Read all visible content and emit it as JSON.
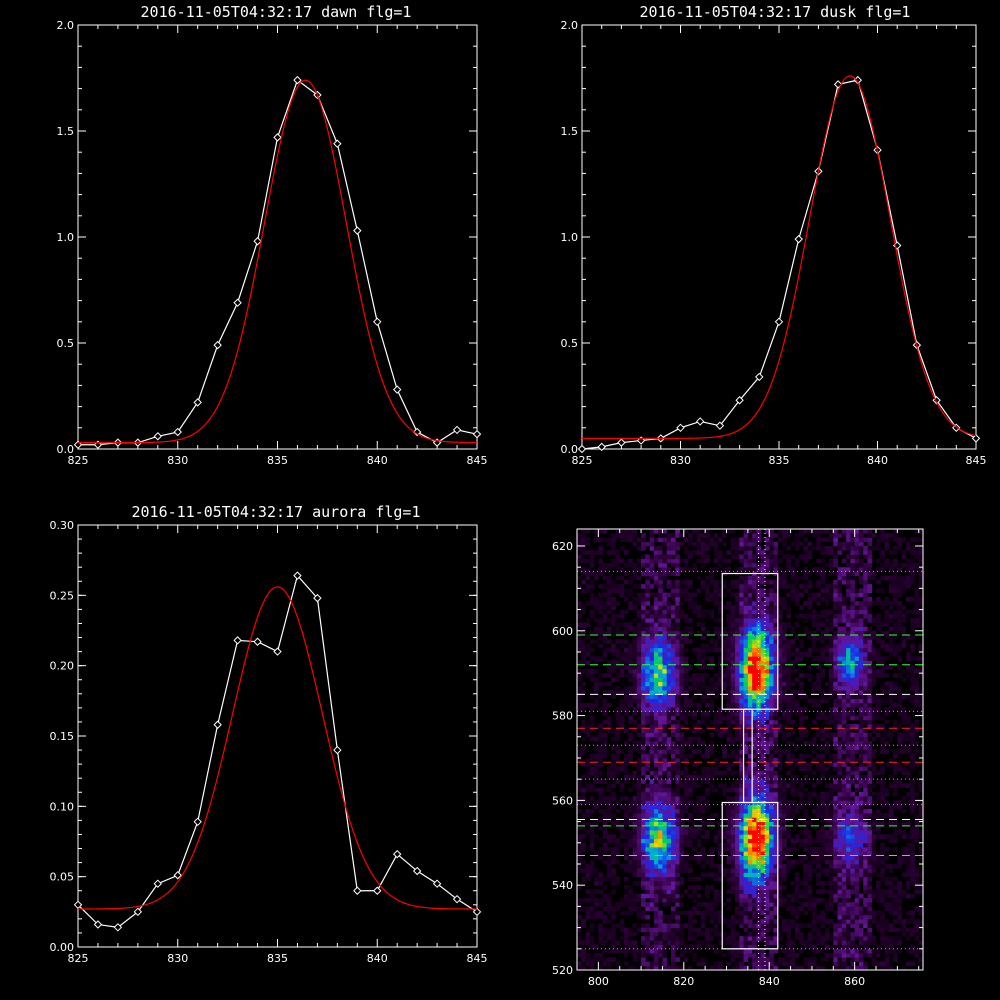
{
  "chart_data": [
    {
      "type": "line",
      "title": "2016-11-05T04:32:17 dawn flg=1",
      "xlim": [
        825,
        845
      ],
      "ylim": [
        0,
        2.0
      ],
      "xticks": [
        825,
        830,
        835,
        840,
        845
      ],
      "yticks": [
        0.0,
        0.5,
        1.0,
        1.5,
        2.0
      ],
      "ytick_labels": [
        "0.0",
        "0.5",
        "1.0",
        "1.5",
        "2.0"
      ],
      "series": [
        {
          "color": "#ffffff",
          "marker": "diamond",
          "x": [
            825,
            826,
            827,
            828,
            829,
            830,
            831,
            832,
            833,
            834,
            835,
            836,
            837,
            838,
            839,
            840,
            841,
            842,
            843,
            844,
            845
          ],
          "y": [
            0.02,
            0.02,
            0.03,
            0.03,
            0.06,
            0.08,
            0.22,
            0.49,
            0.69,
            0.98,
            1.47,
            1.74,
            1.67,
            1.44,
            1.03,
            0.6,
            0.28,
            0.08,
            0.03,
            0.09,
            0.07
          ]
        },
        {
          "color": "#ff0000",
          "fit": "gaussian",
          "amplitude": 1.71,
          "center": 836.4,
          "sigma": 2.05,
          "offset": 0.03
        }
      ]
    },
    {
      "type": "line",
      "title": "2016-11-05T04:32:17 dusk flg=1",
      "xlim": [
        825,
        845
      ],
      "ylim": [
        0,
        2.0
      ],
      "xticks": [
        825,
        830,
        835,
        840,
        845
      ],
      "yticks": [
        0.0,
        0.5,
        1.0,
        1.5,
        2.0
      ],
      "ytick_labels": [
        "0.0",
        "0.5",
        "1.0",
        "1.5",
        "2.0"
      ],
      "series": [
        {
          "color": "#ffffff",
          "marker": "diamond",
          "x": [
            825,
            826,
            827,
            828,
            829,
            830,
            831,
            832,
            833,
            834,
            835,
            836,
            837,
            838,
            839,
            840,
            841,
            842,
            843,
            844,
            845
          ],
          "y": [
            0.0,
            0.01,
            0.03,
            0.04,
            0.05,
            0.1,
            0.13,
            0.11,
            0.23,
            0.34,
            0.6,
            0.99,
            1.31,
            1.72,
            1.74,
            1.41,
            0.96,
            0.49,
            0.23,
            0.1,
            0.05
          ]
        },
        {
          "color": "#ff0000",
          "fit": "gaussian",
          "amplitude": 1.71,
          "center": 838.6,
          "sigma": 2.05,
          "offset": 0.05
        }
      ]
    },
    {
      "type": "line",
      "title": "2016-11-05T04:32:17 aurora flg=1",
      "xlim": [
        825,
        845
      ],
      "ylim": [
        0,
        0.3
      ],
      "xticks": [
        825,
        830,
        835,
        840,
        845
      ],
      "yticks": [
        0.0,
        0.05,
        0.1,
        0.15,
        0.2,
        0.25,
        0.3
      ],
      "ytick_labels": [
        "0.00",
        "0.05",
        "0.10",
        "0.15",
        "0.20",
        "0.25",
        "0.30"
      ],
      "series": [
        {
          "color": "#ffffff",
          "marker": "diamond",
          "x": [
            825,
            826,
            827,
            828,
            829,
            830,
            831,
            832,
            833,
            834,
            835,
            836,
            837,
            838,
            839,
            840,
            841,
            842,
            843,
            844,
            845
          ],
          "y": [
            0.03,
            0.016,
            0.014,
            0.025,
            0.045,
            0.051,
            0.089,
            0.158,
            0.218,
            0.217,
            0.21,
            0.264,
            0.248,
            0.14,
            0.04,
            0.04,
            0.066,
            0.054,
            0.045,
            0.034,
            0.025
          ]
        },
        {
          "color": "#ff0000",
          "fit": "gaussian",
          "amplitude": 0.229,
          "center": 835.0,
          "sigma": 2.25,
          "offset": 0.027
        }
      ]
    },
    {
      "type": "heatmap",
      "title": "",
      "colormap": "idl-rainbow",
      "xlim": [
        795,
        876
      ],
      "ylim": [
        520,
        624
      ],
      "xticks": [
        800,
        820,
        840,
        860
      ],
      "yticks": [
        520,
        540,
        560,
        580,
        600,
        620
      ],
      "blobs": [
        {
          "x": 814,
          "y": 590,
          "sx": 2.6,
          "sy": 5.5,
          "intensity": 0.55
        },
        {
          "x": 837,
          "y": 591,
          "sx": 2.6,
          "sy": 6.5,
          "intensity": 1.0
        },
        {
          "x": 859,
          "y": 593,
          "sx": 2.2,
          "sy": 4.0,
          "intensity": 0.45
        },
        {
          "x": 814,
          "y": 551,
          "sx": 2.6,
          "sy": 5.5,
          "intensity": 0.6
        },
        {
          "x": 837,
          "y": 551,
          "sx": 2.6,
          "sy": 6.5,
          "intensity": 1.0
        },
        {
          "x": 859,
          "y": 551,
          "sx": 2.4,
          "sy": 4.5,
          "intensity": 0.3
        }
      ],
      "boxes": [
        {
          "x0": 829,
          "x1": 842,
          "y0": 581.5,
          "y1": 613.5,
          "color": "#ffffff"
        },
        {
          "x0": 829,
          "x1": 842,
          "y0": 525,
          "y1": 559.5,
          "color": "#ffffff"
        },
        {
          "x0": 834,
          "x1": 836,
          "y0": 559.5,
          "y1": 581.5,
          "color": "#ffffff"
        }
      ],
      "vlines": [
        {
          "x": 837.5,
          "style": "dotted",
          "color": "#ffffff"
        },
        {
          "x": 839.0,
          "style": "dotted",
          "color": "#ffffff"
        }
      ],
      "hlines": [
        {
          "y": 614,
          "style": "dotted",
          "color": "#ff66ff"
        },
        {
          "y": 599,
          "style": "dashed",
          "color": "#33ff33"
        },
        {
          "y": 592,
          "style": "dashed",
          "color": "#33ff33"
        },
        {
          "y": 585,
          "style": "dashed",
          "color": "#ffffff"
        },
        {
          "y": 581,
          "style": "dotted",
          "color": "#ff66ff"
        },
        {
          "y": 577,
          "style": "dashed",
          "color": "#ff2222"
        },
        {
          "y": 573,
          "style": "dotted",
          "color": "#ff66ff"
        },
        {
          "y": 569,
          "style": "dashed",
          "color": "#ff2222"
        },
        {
          "y": 565,
          "style": "dotted",
          "color": "#ff66ff"
        },
        {
          "y": 559,
          "style": "dotted",
          "color": "#ff66ff"
        },
        {
          "y": 555.5,
          "style": "dashed",
          "color": "#ffffff"
        },
        {
          "y": 554,
          "style": "dashed",
          "color": "#33ff33"
        },
        {
          "y": 547,
          "style": "dashed",
          "color": "#33ff33"
        },
        {
          "y": 525,
          "style": "dotted",
          "color": "#ff66ff"
        }
      ]
    }
  ]
}
